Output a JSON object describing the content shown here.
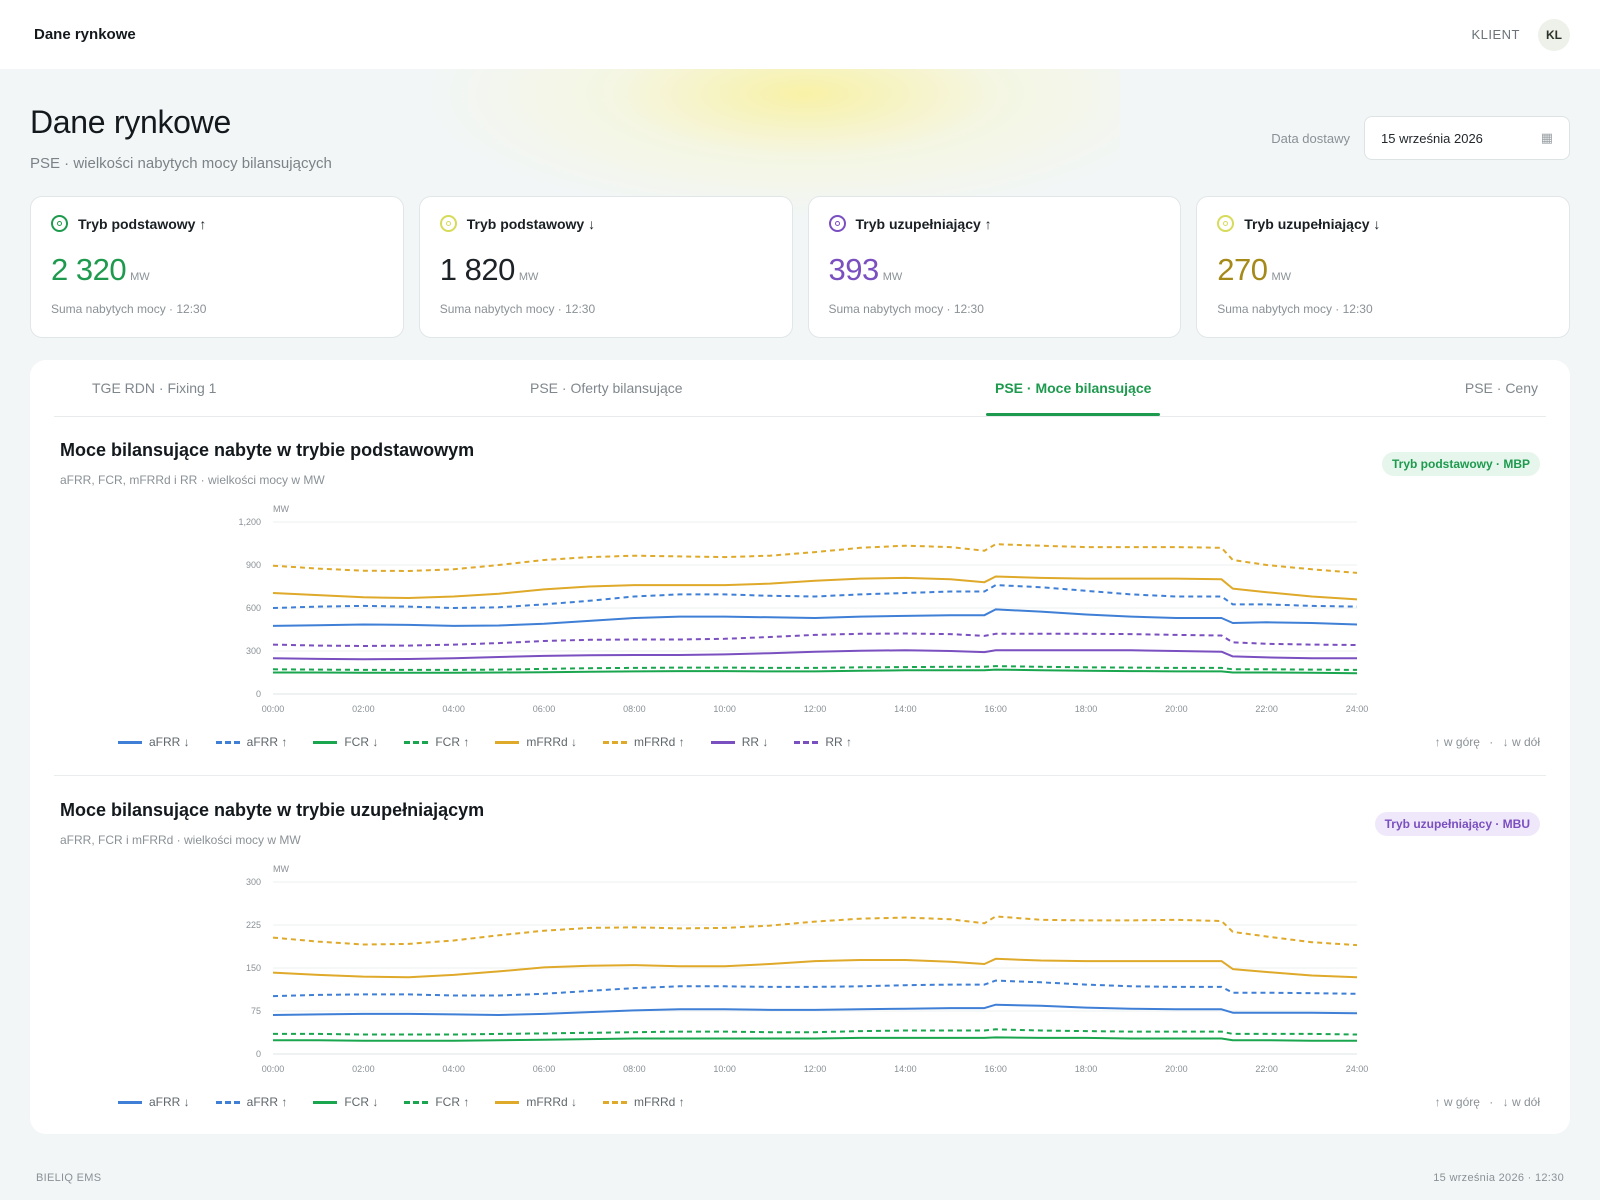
{
  "topbar": {
    "brand": "Dane rynkowe",
    "client_label": "KLIENT",
    "avatar": "KL"
  },
  "page": {
    "title": "Dane rynkowe",
    "subtitle": "PSE · wielkości nabytych mocy bilansujących"
  },
  "date": {
    "label": "Data dostawy",
    "value": "15 września 2026",
    "icon": "calendar-icon"
  },
  "cards": [
    {
      "title": "Tryb podstawowy ↑",
      "value": "2 320",
      "unit": "MW",
      "note": "Suma nabytych mocy · 12:30",
      "color": "#1e9a4e"
    },
    {
      "title": "Tryb podstawowy ↓",
      "value": "1 820",
      "unit": "MW",
      "note": "Suma nabytych mocy · 12:30",
      "color": "#1d2226",
      "ring": "#d6db5a"
    },
    {
      "title": "Tryb uzupełniający ↑",
      "value": "393",
      "unit": "MW",
      "note": "Suma nabytych mocy · 12:30",
      "color": "#7a4fc0"
    },
    {
      "title": "Tryb uzupełniający ↓",
      "value": "270",
      "unit": "MW",
      "note": "Suma nabytych mocy · 12:30",
      "color": "#a58a1a",
      "ring": "#d6db5a"
    }
  ],
  "tabs": [
    {
      "label": "TGE RDN · Fixing 1"
    },
    {
      "label": "PSE · Oferty bilansujące"
    },
    {
      "label": "PSE · Moce bilansujące",
      "active": true
    },
    {
      "label": "PSE · Ceny"
    }
  ],
  "legend_dirs": {
    "up": "↑ w górę",
    "sep": "·",
    "down": "↓ w dół"
  },
  "footer": {
    "left": "BIELIQ EMS",
    "right": "15 września 2026 · 12:30"
  },
  "chart_data": [
    {
      "type": "line",
      "title": "Moce bilansujące nabyte w trybie podstawowym",
      "subtitle": "aFRR, FCR, mFRRd i RR · wielkości mocy w MW",
      "badge": "Tryb podstawowy · MBP",
      "ylabel": "MW",
      "ylim": [
        0,
        1200
      ],
      "yticks": [
        "0",
        "300",
        "600",
        "900",
        "1,200"
      ],
      "x": [
        "00:00",
        "01:00",
        "02:00",
        "03:00",
        "04:00",
        "05:00",
        "06:00",
        "07:00",
        "08:00",
        "09:00",
        "10:00",
        "11:00",
        "12:00",
        "13:00",
        "14:00",
        "15:00",
        "15:45",
        "16:00",
        "17:00",
        "18:00",
        "19:00",
        "20:00",
        "21:00",
        "21:15",
        "22:00",
        "23:00",
        "24:00"
      ],
      "xticks": [
        "00:00",
        "02:00",
        "04:00",
        "06:00",
        "08:00",
        "10:00",
        "12:00",
        "14:00",
        "16:00",
        "18:00",
        "20:00",
        "22:00",
        "24:00"
      ],
      "series": [
        {
          "name": "aFRR ↓",
          "color": "#3f7fd6",
          "dash": false,
          "values": [
            475,
            480,
            485,
            482,
            475,
            478,
            490,
            510,
            530,
            540,
            540,
            535,
            530,
            540,
            545,
            550,
            550,
            590,
            575,
            555,
            540,
            530,
            530,
            495,
            500,
            495,
            485
          ]
        },
        {
          "name": "aFRR ↑",
          "color": "#3f7fd6",
          "dash": true,
          "values": [
            600,
            610,
            615,
            610,
            600,
            605,
            625,
            650,
            680,
            695,
            695,
            685,
            680,
            695,
            705,
            715,
            715,
            760,
            745,
            720,
            695,
            680,
            680,
            625,
            625,
            615,
            610
          ]
        },
        {
          "name": "FCR ↓",
          "color": "#1aa64f",
          "dash": false,
          "values": [
            150,
            150,
            148,
            148,
            148,
            150,
            152,
            155,
            158,
            160,
            160,
            158,
            158,
            162,
            165,
            166,
            166,
            170,
            165,
            162,
            160,
            158,
            158,
            150,
            150,
            148,
            145
          ]
        },
        {
          "name": "FCR ↑",
          "color": "#1aa64f",
          "dash": true,
          "values": [
            172,
            170,
            168,
            168,
            168,
            170,
            175,
            180,
            182,
            184,
            184,
            182,
            182,
            186,
            188,
            190,
            190,
            195,
            190,
            186,
            184,
            182,
            182,
            172,
            172,
            170,
            168
          ]
        },
        {
          "name": "mFRRd ↓",
          "color": "#dfa92a",
          "dash": false,
          "values": [
            705,
            690,
            675,
            670,
            680,
            700,
            730,
            750,
            760,
            760,
            760,
            770,
            790,
            805,
            810,
            800,
            780,
            820,
            810,
            805,
            805,
            805,
            800,
            735,
            710,
            680,
            660
          ]
        },
        {
          "name": "mFRRd ↑",
          "color": "#dfa92a",
          "dash": true,
          "values": [
            895,
            875,
            860,
            858,
            870,
            900,
            935,
            955,
            965,
            960,
            955,
            965,
            990,
            1020,
            1035,
            1025,
            1000,
            1045,
            1035,
            1025,
            1025,
            1025,
            1020,
            935,
            900,
            870,
            845
          ]
        },
        {
          "name": "RR ↓",
          "color": "#7a4fc0",
          "dash": false,
          "values": [
            250,
            245,
            242,
            244,
            250,
            258,
            266,
            270,
            272,
            272,
            276,
            285,
            295,
            302,
            305,
            300,
            292,
            305,
            305,
            305,
            305,
            300,
            295,
            262,
            255,
            250,
            250
          ]
        },
        {
          "name": "RR ↑",
          "color": "#7a4fc0",
          "dash": true,
          "values": [
            345,
            338,
            335,
            338,
            345,
            355,
            370,
            378,
            380,
            380,
            385,
            398,
            412,
            420,
            422,
            418,
            405,
            420,
            420,
            420,
            418,
            412,
            408,
            360,
            350,
            345,
            342
          ]
        }
      ]
    },
    {
      "type": "line",
      "title": "Moce bilansujące nabyte w trybie uzupełniającym",
      "subtitle": "aFRR, FCR i mFRRd · wielkości mocy w MW",
      "badge": "Tryb uzupełniający · MBU",
      "ylabel": "MW",
      "ylim": [
        0,
        300
      ],
      "yticks": [
        "0",
        "75",
        "150",
        "225",
        "300"
      ],
      "x": [
        "00:00",
        "01:00",
        "02:00",
        "03:00",
        "04:00",
        "05:00",
        "06:00",
        "07:00",
        "08:00",
        "09:00",
        "10:00",
        "11:00",
        "12:00",
        "13:00",
        "14:00",
        "15:00",
        "15:45",
        "16:00",
        "17:00",
        "18:00",
        "19:00",
        "20:00",
        "21:00",
        "21:15",
        "22:00",
        "23:00",
        "24:00"
      ],
      "xticks": [
        "00:00",
        "02:00",
        "04:00",
        "06:00",
        "08:00",
        "10:00",
        "12:00",
        "14:00",
        "16:00",
        "18:00",
        "20:00",
        "22:00",
        "24:00"
      ],
      "series": [
        {
          "name": "aFRR ↓",
          "color": "#3f7fd6",
          "dash": false,
          "values": [
            68,
            69,
            70,
            70,
            69,
            68,
            70,
            73,
            76,
            78,
            78,
            77,
            77,
            78,
            79,
            80,
            80,
            86,
            84,
            81,
            79,
            78,
            78,
            72,
            72,
            72,
            71
          ]
        },
        {
          "name": "aFRR ↑",
          "color": "#3f7fd6",
          "dash": true,
          "values": [
            101,
            103,
            104,
            104,
            102,
            102,
            105,
            110,
            115,
            118,
            118,
            117,
            117,
            118,
            120,
            121,
            121,
            128,
            125,
            121,
            118,
            117,
            117,
            107,
            107,
            106,
            105
          ]
        },
        {
          "name": "FCR ↓",
          "color": "#1aa64f",
          "dash": false,
          "values": [
            24,
            24,
            23,
            23,
            23,
            24,
            25,
            26,
            27,
            27,
            27,
            27,
            27,
            28,
            28,
            28,
            28,
            29,
            28,
            28,
            27,
            27,
            27,
            24,
            24,
            23,
            23
          ]
        },
        {
          "name": "FCR ↑",
          "color": "#1aa64f",
          "dash": true,
          "values": [
            35,
            35,
            34,
            34,
            34,
            35,
            36,
            37,
            38,
            39,
            39,
            38,
            38,
            40,
            41,
            41,
            41,
            43,
            41,
            40,
            39,
            39,
            39,
            35,
            35,
            35,
            34
          ]
        },
        {
          "name": "mFRRd ↓",
          "color": "#dfa92a",
          "dash": false,
          "values": [
            142,
            138,
            135,
            134,
            138,
            144,
            151,
            154,
            155,
            153,
            153,
            157,
            162,
            164,
            164,
            161,
            157,
            166,
            163,
            162,
            162,
            162,
            162,
            148,
            143,
            137,
            134
          ]
        },
        {
          "name": "mFRRd ↑",
          "color": "#dfa92a",
          "dash": true,
          "values": [
            203,
            196,
            191,
            192,
            198,
            207,
            215,
            220,
            221,
            219,
            220,
            224,
            231,
            236,
            238,
            235,
            228,
            240,
            234,
            233,
            233,
            234,
            232,
            213,
            205,
            195,
            190
          ]
        }
      ]
    }
  ]
}
